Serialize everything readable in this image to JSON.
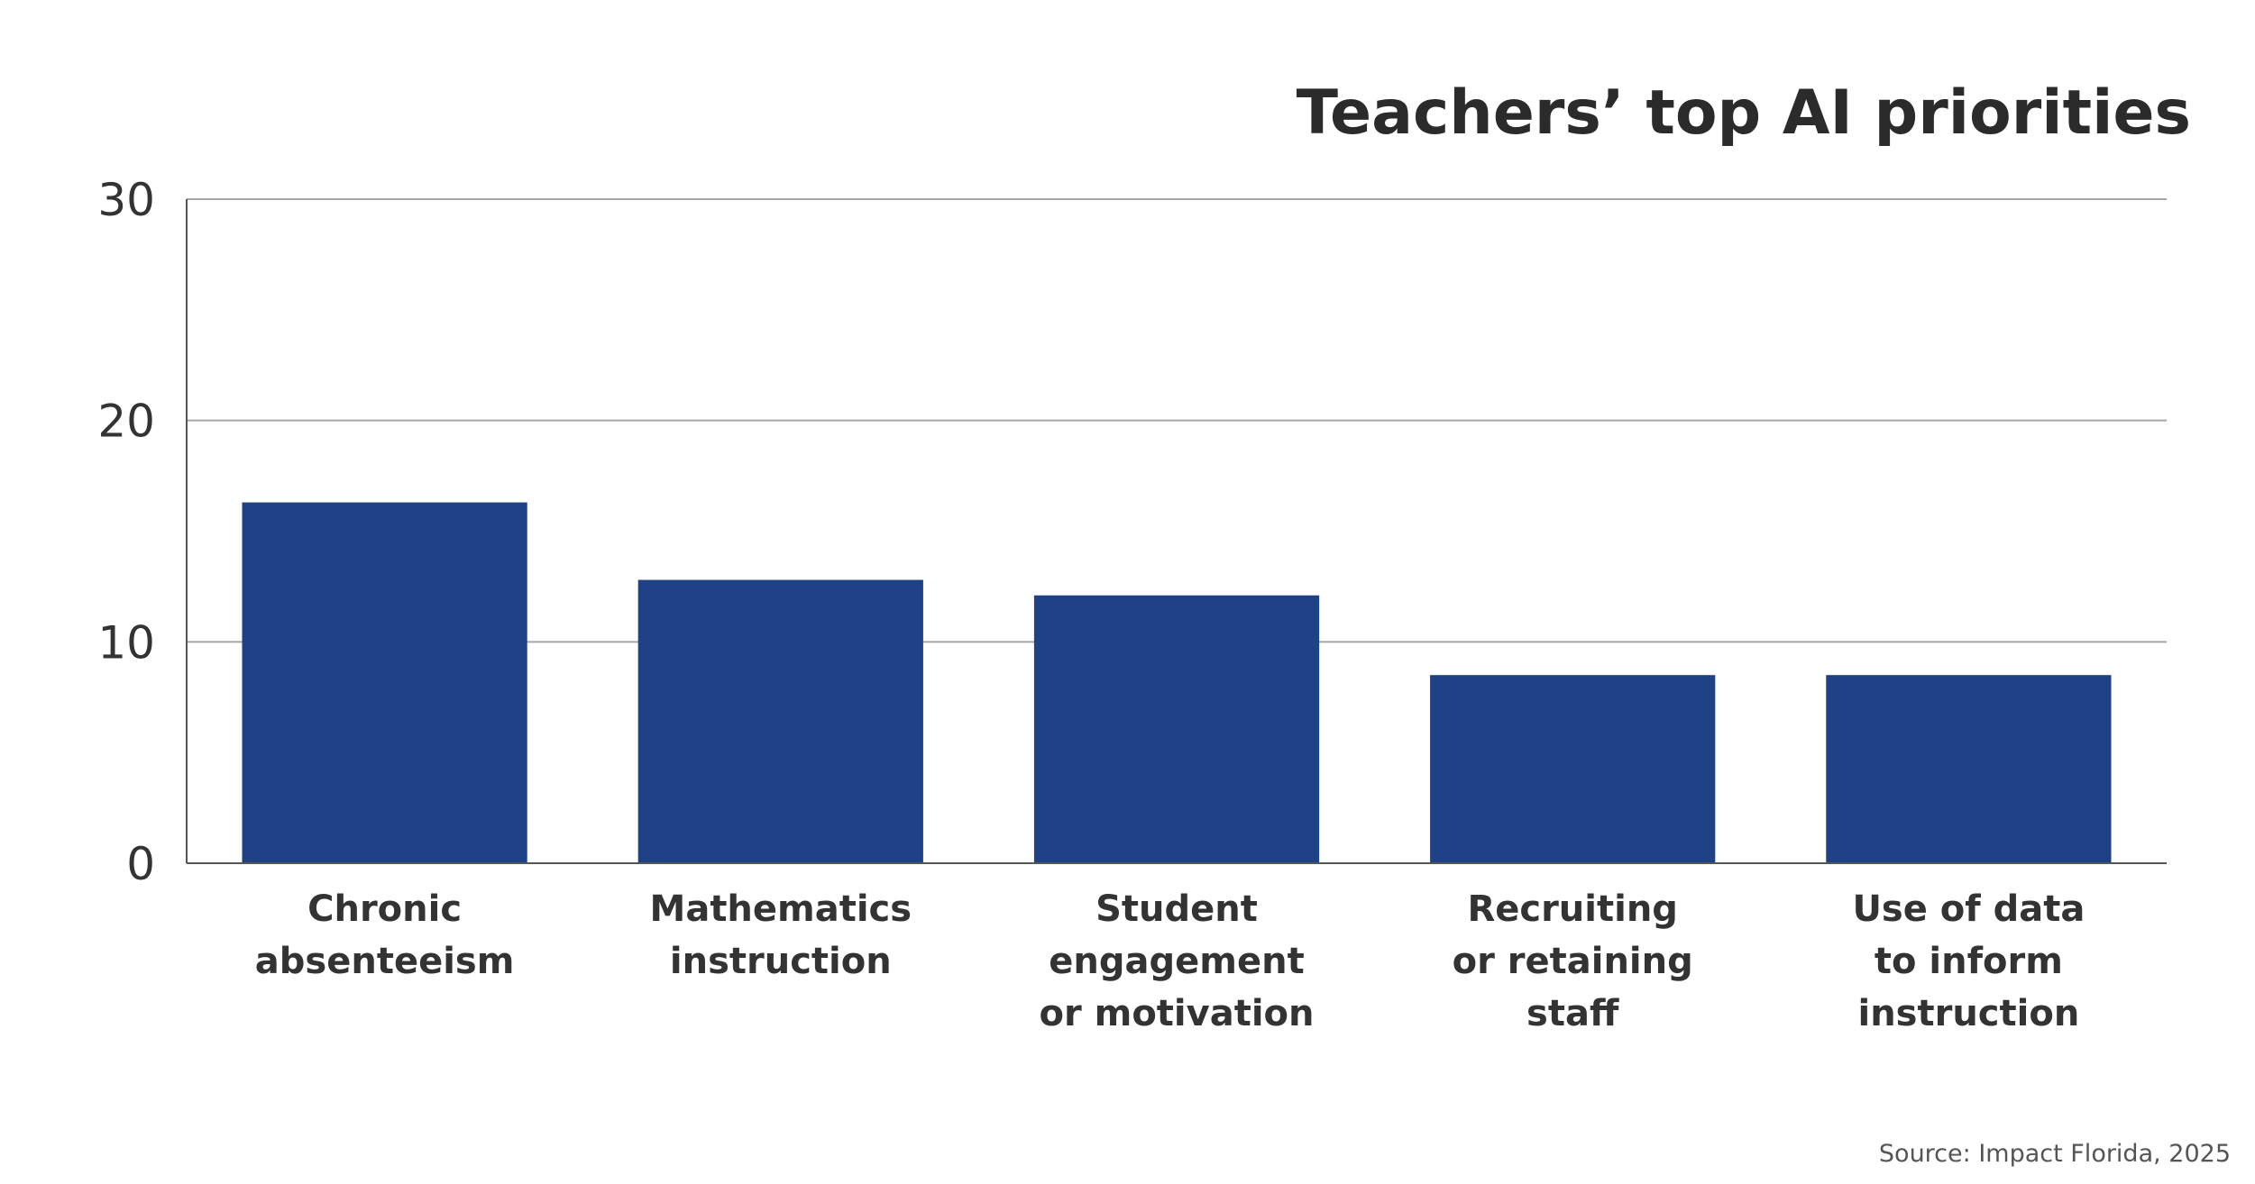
{
  "chart_data": {
    "type": "bar",
    "title": "Teachers’ top AI priorities",
    "source": "Source: Impact Florida, 2025",
    "categories": [
      [
        "Chronic",
        "absenteeism"
      ],
      [
        "Mathematics",
        "instruction"
      ],
      [
        "Student",
        "engagement",
        "or motivation"
      ],
      [
        "Recruiting",
        "or retaining",
        "staff"
      ],
      [
        "Use of data",
        "to inform",
        "instruction"
      ]
    ],
    "values": [
      16.3,
      12.8,
      12.1,
      8.5,
      8.5
    ],
    "ylim": [
      0,
      30
    ],
    "yticks": [
      "0",
      "10",
      "20",
      "30"
    ],
    "grid": true,
    "xlabel": "",
    "ylabel": "",
    "colors": {
      "bar": "#1f4287",
      "grid": "#a6a6a6",
      "axis": "#555555"
    }
  }
}
